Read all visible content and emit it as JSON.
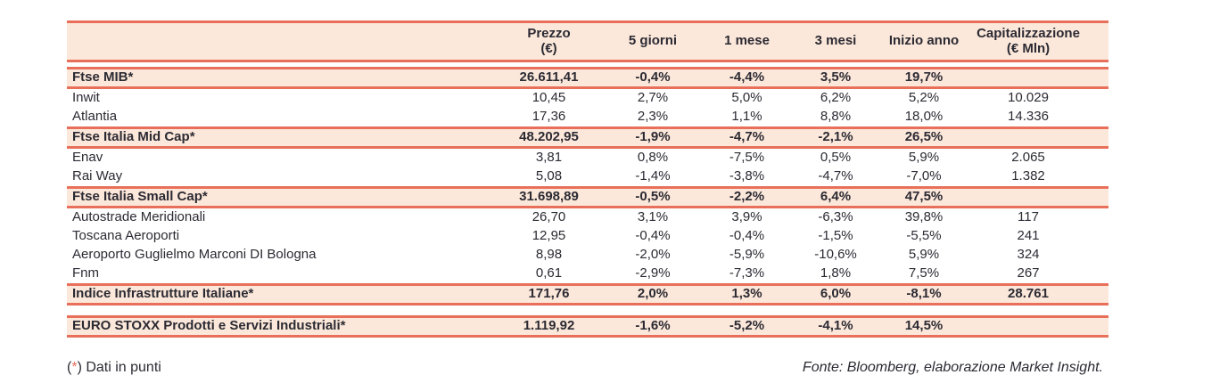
{
  "table": {
    "columns": {
      "name": {
        "label": ""
      },
      "prezzo": {
        "label_line1": "Prezzo",
        "label_line2": "(€)"
      },
      "d5": {
        "label": "5 giorni"
      },
      "m1": {
        "label": "1 mese"
      },
      "m3": {
        "label": "3 mesi"
      },
      "ytd": {
        "label": "Inizio anno"
      },
      "cap": {
        "label_line1": "Capitalizzazione",
        "label_line2": "(€ Mln)"
      }
    },
    "rows": [
      {
        "type": "index",
        "name": "Ftse MIB*",
        "prezzo": "26.611,41",
        "d5": "-0,4%",
        "m1": "-4,4%",
        "m3": "3,5%",
        "ytd": "19,7%",
        "cap": ""
      },
      {
        "type": "stock",
        "name": "Inwit",
        "prezzo": "10,45",
        "d5": "2,7%",
        "m1": "5,0%",
        "m3": "6,2%",
        "ytd": "5,2%",
        "cap": "10.029"
      },
      {
        "type": "stock",
        "name": "Atlantia",
        "prezzo": "17,36",
        "d5": "2,3%",
        "m1": "1,1%",
        "m3": "8,8%",
        "ytd": "18,0%",
        "cap": "14.336"
      },
      {
        "type": "index",
        "name": "Ftse Italia Mid Cap*",
        "prezzo": "48.202,95",
        "d5": "-1,9%",
        "m1": "-4,7%",
        "m3": "-2,1%",
        "ytd": "26,5%",
        "cap": ""
      },
      {
        "type": "stock",
        "name": "Enav",
        "prezzo": "3,81",
        "d5": "0,8%",
        "m1": "-7,5%",
        "m3": "0,5%",
        "ytd": "5,9%",
        "cap": "2.065"
      },
      {
        "type": "stock",
        "name": "Rai Way",
        "prezzo": "5,08",
        "d5": "-1,4%",
        "m1": "-3,8%",
        "m3": "-4,7%",
        "ytd": "-7,0%",
        "cap": "1.382"
      },
      {
        "type": "index",
        "name": "Ftse Italia Small Cap*",
        "prezzo": "31.698,89",
        "d5": "-0,5%",
        "m1": "-2,2%",
        "m3": "6,4%",
        "ytd": "47,5%",
        "cap": ""
      },
      {
        "type": "stock",
        "name": "Autostrade Meridionali",
        "prezzo": "26,70",
        "d5": "3,1%",
        "m1": "3,9%",
        "m3": "-6,3%",
        "ytd": "39,8%",
        "cap": "117"
      },
      {
        "type": "stock",
        "name": "Toscana Aeroporti",
        "prezzo": "12,95",
        "d5": "-0,4%",
        "m1": "-0,4%",
        "m3": "-1,5%",
        "ytd": "-5,5%",
        "cap": "241"
      },
      {
        "type": "stock",
        "name": "Aeroporto Guglielmo Marconi DI Bologna",
        "prezzo": "8,98",
        "d5": "-2,0%",
        "m1": "-5,9%",
        "m3": "-10,6%",
        "ytd": "5,9%",
        "cap": "324"
      },
      {
        "type": "stock",
        "name": "Fnm",
        "prezzo": "0,61",
        "d5": "-2,9%",
        "m1": "-7,3%",
        "m3": "1,8%",
        "ytd": "7,5%",
        "cap": "267"
      },
      {
        "type": "index",
        "name": "Indice Infrastrutture Italiane*",
        "prezzo": "171,76",
        "d5": "2,0%",
        "m1": "1,3%",
        "m3": "6,0%",
        "ytd": "-8,1%",
        "cap": "28.761"
      },
      {
        "type": "gap"
      },
      {
        "type": "index",
        "name": "EURO STOXX Prodotti e Servizi Industriali*",
        "prezzo": "1.119,92",
        "d5": "-1,6%",
        "m1": "-5,2%",
        "m3": "-4,1%",
        "ytd": "14,5%",
        "cap": ""
      }
    ]
  },
  "footer": {
    "note_paren_open": "(",
    "note_star": "*",
    "note_rest": ") Dati in punti",
    "source": "Fonte: Bloomberg, elaborazione Market Insight."
  },
  "colors": {
    "accent": "#e8705a",
    "row_highlight": "#fce8da",
    "text": "#2b2a33"
  }
}
